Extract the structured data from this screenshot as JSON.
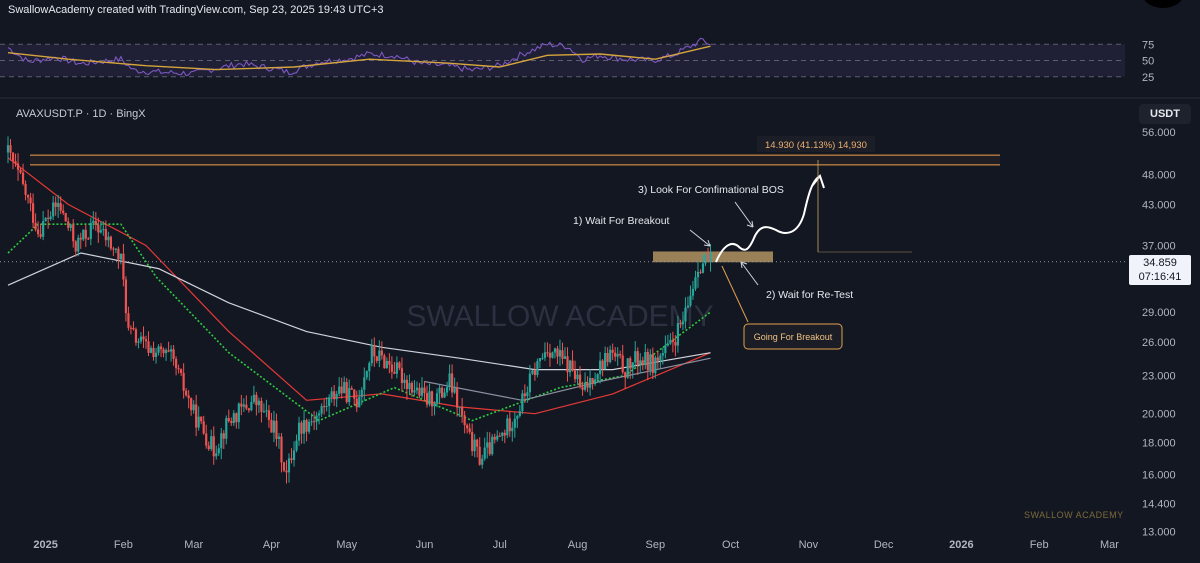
{
  "header": {
    "title": "SwallowAcademy created with TradingView.com, Sep 23, 2025 19:43 UTC+3"
  },
  "symbol": {
    "label": "AVAXUSDT.P · 1D · BingX"
  },
  "currency": "USDT",
  "price_tag": {
    "price": "34.859",
    "countdown": "07:16:41"
  },
  "watermark": "SWALLOW ACADEMY",
  "brand": "SWALLOW ACADEMY",
  "annotations": {
    "breakout": "1) Wait For Breakout",
    "retest": "2) Wait for Re-Test",
    "bos": "3) Look For Confimational BOS",
    "going": "Going For Breakout",
    "measure": "14.930 (41.13%) 14,930"
  },
  "colors": {
    "background": "#131722",
    "up_candle": "#26a69a",
    "down_candle": "#ef5350",
    "resistance": "#f0a04b",
    "zone": "#c8a46a",
    "rsi_line": "#7e57c2",
    "rsi_ma": "#d4a53c",
    "ma_red": "#e53935",
    "ma_green": "#2ecc40",
    "ma_white": "#d0d3db",
    "ma_grey": "#8c8fa0"
  },
  "chart_data": {
    "type": "candlestick",
    "symbol": "AVAXUSDT.P",
    "timeframe": "1D",
    "y_scale": "log",
    "ylim": [
      12.6,
      63
    ],
    "y_ticks": [
      56,
      48,
      43,
      37,
      34.859,
      29,
      26,
      23,
      20,
      18,
      16,
      14.4,
      13
    ],
    "y_tick_labels": [
      "56.000",
      "48.000",
      "43.000",
      "37.000",
      "29.000",
      "26.000",
      "23.000",
      "20.000",
      "18.000",
      "16.000",
      "14.400",
      "13.000"
    ],
    "x_range": [
      "2024-12-17",
      "2026-03-06"
    ],
    "x_ticks": [
      "2025-01-01",
      "2025-02-01",
      "2025-03-01",
      "2025-04-01",
      "2025-05-01",
      "2025-06-01",
      "2025-07-01",
      "2025-08-01",
      "2025-09-01",
      "2025-10-01",
      "2025-11-01",
      "2025-12-01",
      "2026-01-01",
      "2026-02-01",
      "2026-03-01"
    ],
    "x_tick_labels": [
      "2025",
      "Feb",
      "Mar",
      "Apr",
      "May",
      "Jun",
      "Jul",
      "Aug",
      "Sep",
      "Oct",
      "Nov",
      "Dec",
      "2026",
      "Feb",
      "Mar"
    ],
    "price_path": [
      [
        "2024-12-17",
        52
      ],
      [
        "2024-12-22",
        47
      ],
      [
        "2024-12-29",
        39
      ],
      [
        "2025-01-06",
        43
      ],
      [
        "2025-01-13",
        37
      ],
      [
        "2025-01-21",
        40
      ],
      [
        "2025-01-31",
        35
      ],
      [
        "2025-02-03",
        27
      ],
      [
        "2025-02-10",
        25.5
      ],
      [
        "2025-02-20",
        24.5
      ],
      [
        "2025-03-01",
        20
      ],
      [
        "2025-03-09",
        17.5
      ],
      [
        "2025-03-15",
        19.5
      ],
      [
        "2025-03-25",
        21
      ],
      [
        "2025-04-02",
        19
      ],
      [
        "2025-04-07",
        16
      ],
      [
        "2025-04-12",
        19
      ],
      [
        "2025-04-20",
        20
      ],
      [
        "2025-04-28",
        22
      ],
      [
        "2025-05-05",
        21
      ],
      [
        "2025-05-11",
        25
      ],
      [
        "2025-05-18",
        24
      ],
      [
        "2025-05-25",
        22.5
      ],
      [
        "2025-06-02",
        21
      ],
      [
        "2025-06-08",
        21.5
      ],
      [
        "2025-06-11",
        22.5
      ],
      [
        "2025-06-18",
        18.5
      ],
      [
        "2025-06-23",
        17
      ],
      [
        "2025-07-02",
        18.5
      ],
      [
        "2025-07-09",
        20.5
      ],
      [
        "2025-07-15",
        23.5
      ],
      [
        "2025-07-20",
        25.5
      ],
      [
        "2025-07-25",
        24.5
      ],
      [
        "2025-07-30",
        23.5
      ],
      [
        "2025-08-03",
        21.5
      ],
      [
        "2025-08-07",
        23
      ],
      [
        "2025-08-14",
        25
      ],
      [
        "2025-08-20",
        23.5
      ],
      [
        "2025-08-25",
        24.5
      ],
      [
        "2025-08-31",
        24
      ],
      [
        "2025-09-07",
        25.5
      ],
      [
        "2025-09-13",
        28.5
      ],
      [
        "2025-09-18",
        34.5
      ],
      [
        "2025-09-21",
        35
      ],
      [
        "2025-09-23",
        34.859
      ]
    ],
    "moving_averages": [
      {
        "color": "#e53935",
        "points": [
          [
            "2024-12-17",
            51
          ],
          [
            "2025-01-10",
            43
          ],
          [
            "2025-02-10",
            37
          ],
          [
            "2025-03-15",
            27
          ],
          [
            "2025-04-15",
            21
          ],
          [
            "2025-05-15",
            21.5
          ],
          [
            "2025-06-15",
            20.5
          ],
          [
            "2025-07-15",
            20
          ],
          [
            "2025-08-15",
            21.5
          ],
          [
            "2025-09-23",
            25
          ]
        ]
      },
      {
        "color": "#2ecc40",
        "points": [
          [
            "2024-12-17",
            36
          ],
          [
            "2024-12-29",
            40
          ],
          [
            "2025-01-31",
            40
          ],
          [
            "2025-02-14",
            33
          ],
          [
            "2025-03-15",
            25
          ],
          [
            "2025-04-20",
            19.5
          ],
          [
            "2025-05-20",
            22
          ],
          [
            "2025-06-20",
            19.5
          ],
          [
            "2025-07-25",
            22
          ],
          [
            "2025-08-20",
            23
          ],
          [
            "2025-09-23",
            29
          ]
        ]
      },
      {
        "color": "#d0d3db",
        "points": [
          [
            "2024-12-17",
            32
          ],
          [
            "2025-01-15",
            36
          ],
          [
            "2025-02-15",
            34
          ],
          [
            "2025-03-15",
            30
          ],
          [
            "2025-04-15",
            27
          ],
          [
            "2025-05-15",
            25.5
          ],
          [
            "2025-06-15",
            24.5
          ],
          [
            "2025-07-15",
            23.5
          ],
          [
            "2025-08-15",
            23.5
          ],
          [
            "2025-09-23",
            25
          ]
        ]
      },
      {
        "color": "#8c8fa0",
        "points": [
          [
            "2025-06-01",
            22.5
          ],
          [
            "2025-07-10",
            21
          ],
          [
            "2025-08-10",
            22.5
          ],
          [
            "2025-09-23",
            24.5
          ]
        ]
      }
    ],
    "resistance_zone": [
      49.7,
      51.5
    ],
    "breakout_zone": [
      34.8,
      36.2
    ],
    "target_price": 48,
    "rsi": {
      "levels": [
        75,
        50,
        25
      ],
      "level_labels": [
        "75",
        "50",
        "25"
      ],
      "path": [
        [
          "2024-12-17",
          70
        ],
        [
          "2024-12-25",
          48
        ],
        [
          "2025-01-05",
          55
        ],
        [
          "2025-01-15",
          45
        ],
        [
          "2025-01-31",
          52
        ],
        [
          "2025-02-05",
          35
        ],
        [
          "2025-02-15",
          32
        ],
        [
          "2025-03-01",
          30
        ],
        [
          "2025-03-10",
          38
        ],
        [
          "2025-03-20",
          45
        ],
        [
          "2025-04-01",
          38
        ],
        [
          "2025-04-08",
          32
        ],
        [
          "2025-04-20",
          48
        ],
        [
          "2025-05-01",
          52
        ],
        [
          "2025-05-10",
          60
        ],
        [
          "2025-05-20",
          58
        ],
        [
          "2025-05-30",
          45
        ],
        [
          "2025-06-10",
          42
        ],
        [
          "2025-06-20",
          35
        ],
        [
          "2025-07-01",
          42
        ],
        [
          "2025-07-10",
          60
        ],
        [
          "2025-07-20",
          75
        ],
        [
          "2025-07-28",
          72
        ],
        [
          "2025-08-03",
          52
        ],
        [
          "2025-08-10",
          58
        ],
        [
          "2025-08-20",
          52
        ],
        [
          "2025-08-31",
          50
        ],
        [
          "2025-09-08",
          58
        ],
        [
          "2025-09-15",
          72
        ],
        [
          "2025-09-20",
          82
        ],
        [
          "2025-09-23",
          74
        ]
      ],
      "ma_path": [
        [
          "2024-12-17",
          62
        ],
        [
          "2025-01-10",
          52
        ],
        [
          "2025-02-10",
          42
        ],
        [
          "2025-03-10",
          36
        ],
        [
          "2025-04-10",
          40
        ],
        [
          "2025-05-10",
          52
        ],
        [
          "2025-06-10",
          46
        ],
        [
          "2025-07-01",
          40
        ],
        [
          "2025-07-20",
          58
        ],
        [
          "2025-08-10",
          60
        ],
        [
          "2025-09-01",
          52
        ],
        [
          "2025-09-23",
          72
        ]
      ]
    }
  }
}
